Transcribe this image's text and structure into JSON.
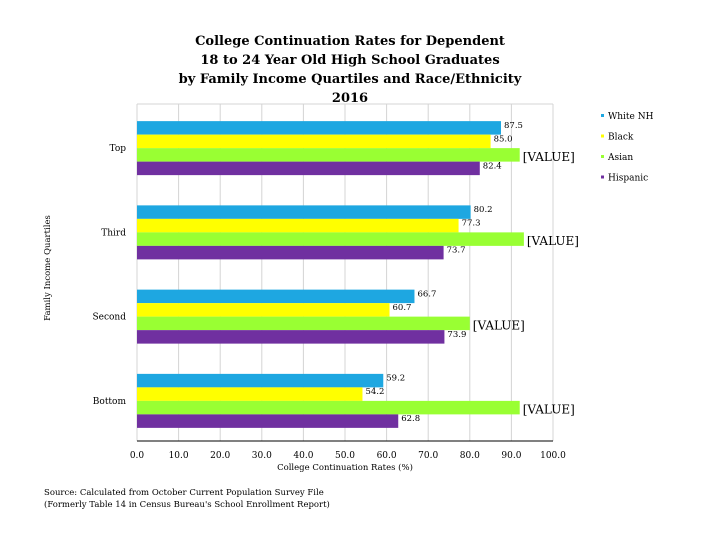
{
  "chart_data": {
    "type": "bar",
    "orientation": "horizontal",
    "title_lines": [
      "College Continuation Rates for Dependent",
      "18 to 24 Year Old High School Graduates",
      "by Family Income Quartiles and Race/Ethnicity",
      "2016"
    ],
    "xlabel": "College Continuation Rates (%)",
    "ylabel": "Family Income Quartiles",
    "xlim": [
      0,
      100
    ],
    "x_ticks": [
      "0.0",
      "10.0",
      "20.0",
      "30.0",
      "40.0",
      "50.0",
      "60.0",
      "70.0",
      "80.0",
      "90.0",
      "100.0"
    ],
    "categories": [
      "Top",
      "Third",
      "Second",
      "Bottom"
    ],
    "grid": true,
    "legend_position": "right",
    "series": [
      {
        "name": "White NH",
        "color": "#1ea7e1",
        "values": [
          87.5,
          80.2,
          66.7,
          59.2
        ],
        "labels": [
          "87.5",
          "80.2",
          "66.7",
          "59.2"
        ]
      },
      {
        "name": "Black",
        "color": "#ffff00",
        "values": [
          85.0,
          77.3,
          60.7,
          54.2
        ],
        "labels": [
          "85.0",
          "77.3",
          "60.7",
          "54.2"
        ]
      },
      {
        "name": "Asian",
        "color": "#99ff33",
        "values": [
          92,
          93,
          80,
          92
        ],
        "labels": [
          "[VALUE]",
          "[VALUE]",
          "[VALUE]",
          "[VALUE]"
        ]
      },
      {
        "name": "Hispanic",
        "color": "#7030a0",
        "values": [
          82.4,
          73.7,
          73.9,
          62.8
        ],
        "labels": [
          "82.4",
          "73.7",
          "73.9",
          "62.8"
        ]
      }
    ]
  },
  "source_lines": [
    "Source: Calculated from October Current Population Survey File",
    "(Formerly Table 14 in Census Bureau's School Enrollment Report)"
  ]
}
